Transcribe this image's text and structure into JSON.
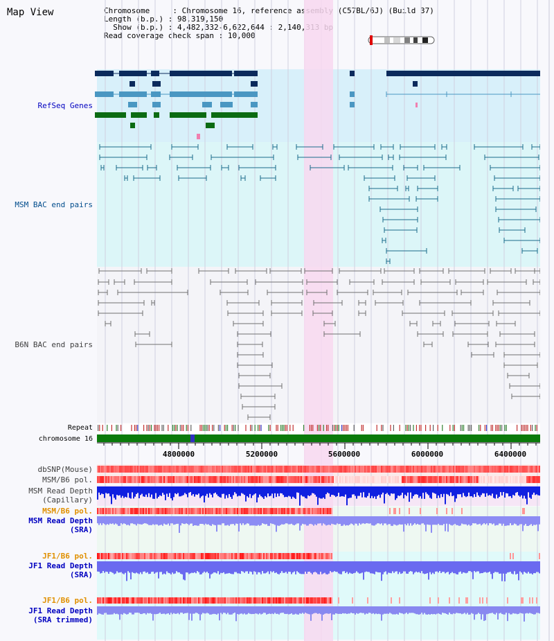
{
  "window": {
    "title": "Map View"
  },
  "header": {
    "chromosome_key": "Chromosome",
    "chromosome_val": "Chromosome 16, reference assembly (C57BL/6J) (Build 37)",
    "length_key": "Length (b.p.)",
    "length_val": "98,319,150",
    "show_key": "Show (b.p.)",
    "show_val": "4,482,332-6,622,644 : 2,140,313 bp",
    "coverage_key": "Read coverage check span",
    "coverage_val": "10,000"
  },
  "tracks": {
    "refseq": "RefSeq Genes",
    "msm_bac": "MSM BAC end pairs",
    "b6n_bac": "B6N BAC end pairs",
    "repeat": "Repeat",
    "chromosome": "chromosome 16",
    "dbsnp": "dbSNP(Mouse)",
    "msm_b6_pol": "MSM/B6 pol.",
    "msm_depth_cap_1": "MSM Read Depth",
    "msm_depth_cap_2": "(Capillary)",
    "msm_b6_pol_2": "MSM/B6 pol.",
    "msm_depth_sra_1": "MSM Read Depth",
    "msm_depth_sra_2": "(SRA)",
    "jf1_b6_pol": "JF1/B6 pol.",
    "jf1_depth_sra_1": "JF1 Read Depth",
    "jf1_depth_sra_2": "(SRA)",
    "jf1_b6_pol_2": "JF1/B6 pol.",
    "jf1_depth_trim_1": "JF1 Read Depth",
    "jf1_depth_trim_2": "(SRA trimmed)"
  },
  "axis": {
    "ticks": [
      "4800000",
      "5200000",
      "5600000",
      "6000000",
      "6400000"
    ]
  },
  "colors": {
    "refseq_bg": "#d8f0fa",
    "msm_bg": "#dcf6f8",
    "highlight": "#f8d8f0",
    "gene_dark": "#0b2a5c",
    "gene_mid": "#4a97c2",
    "gene_green": "#0b6b12",
    "msm_line": "#1a6a8a",
    "b6n_line": "#707070",
    "chrom_bar": "#0a7a0a",
    "label_blue": "#0000c0",
    "label_orange": "#e09000",
    "label_refseq": "#0000c0",
    "label_msm": "#004c8c",
    "label_b6n": "#404040"
  }
}
